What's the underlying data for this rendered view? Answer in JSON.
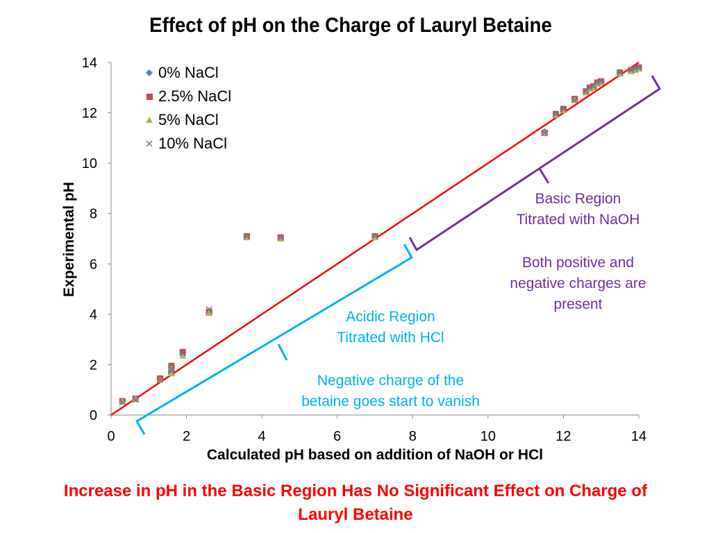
{
  "chart_data": {
    "type": "scatter",
    "title": "Effect of pH on the Charge of Lauryl Betaine",
    "xlabel": "Calculated pH based on addition of NaOH or HCl",
    "ylabel": "Experimental pH",
    "xlim": [
      0,
      14
    ],
    "ylim": [
      0,
      14
    ],
    "xticks": [
      0,
      2,
      4,
      6,
      8,
      10,
      12,
      14
    ],
    "yticks": [
      0,
      2,
      4,
      6,
      8,
      10,
      12,
      14
    ],
    "legend_position": "top-left",
    "series": [
      {
        "name": "0% NaCl",
        "marker": "diamond",
        "color": "#4f81bd",
        "x": [
          0.3,
          0.65,
          1.3,
          1.6,
          1.6,
          1.9,
          2.6,
          3.6,
          4.5,
          7.0,
          11.5,
          11.8,
          12.0,
          12.3,
          12.6,
          12.7,
          12.8,
          12.9,
          13.0,
          13.5,
          13.8,
          13.9,
          14.0
        ],
        "y": [
          0.55,
          0.65,
          1.45,
          1.7,
          1.9,
          2.5,
          4.1,
          7.1,
          7.05,
          7.1,
          11.25,
          11.95,
          12.15,
          12.55,
          12.85,
          13.0,
          13.05,
          13.2,
          13.25,
          13.6,
          13.7,
          13.75,
          13.8
        ]
      },
      {
        "name": "2.5% NaCl",
        "marker": "square",
        "color": "#c0504d",
        "x": [
          0.3,
          0.65,
          1.3,
          1.6,
          1.6,
          1.9,
          2.6,
          3.6,
          4.5,
          7.0,
          11.5,
          11.8,
          12.0,
          12.3,
          12.6,
          12.7,
          12.8,
          12.9,
          13.0,
          13.5,
          13.8,
          13.9,
          14.0
        ],
        "y": [
          0.55,
          0.65,
          1.45,
          1.7,
          1.95,
          2.5,
          4.1,
          7.1,
          7.05,
          7.1,
          11.2,
          11.95,
          12.15,
          12.55,
          12.85,
          13.0,
          13.05,
          13.2,
          13.25,
          13.6,
          13.7,
          13.75,
          13.8
        ]
      },
      {
        "name": "5% NaCl",
        "marker": "triangle",
        "color": "#9bbb59",
        "x": [
          0.3,
          0.65,
          1.3,
          1.6,
          1.6,
          1.9,
          2.6,
          3.6,
          4.5,
          7.0,
          11.5,
          11.8,
          12.0,
          12.3,
          12.6,
          12.7,
          12.8,
          12.9,
          13.0,
          13.5,
          13.8,
          13.9,
          14.0
        ],
        "y": [
          0.55,
          0.65,
          1.4,
          1.65,
          1.85,
          2.35,
          4.05,
          7.05,
          7.0,
          7.05,
          11.2,
          11.9,
          12.1,
          12.5,
          12.8,
          12.95,
          13.0,
          13.15,
          13.2,
          13.55,
          13.65,
          13.7,
          13.75
        ]
      },
      {
        "name": "10% NaCl",
        "marker": "x",
        "color": "#8064a2",
        "x": [
          0.3,
          0.65,
          1.3,
          1.6,
          1.6,
          1.9,
          2.6,
          3.6,
          4.5,
          7.0,
          11.5,
          11.8,
          12.0,
          12.3,
          12.6,
          12.7,
          12.8,
          12.9,
          13.0,
          13.5,
          13.8,
          13.9,
          14.0
        ],
        "y": [
          0.5,
          0.6,
          1.4,
          1.75,
          1.85,
          2.45,
          4.2,
          7.1,
          7.05,
          7.1,
          11.2,
          11.95,
          12.15,
          12.5,
          12.85,
          13.0,
          13.05,
          13.2,
          13.25,
          13.6,
          13.7,
          13.75,
          13.8
        ]
      }
    ],
    "reference_line": {
      "name": "y = x",
      "color": "#ff0000",
      "x": [
        0,
        14
      ],
      "y": [
        0,
        14
      ]
    },
    "annotations": [
      {
        "name": "basic-region",
        "color": "#7030a0",
        "lines": [
          "Basic Region",
          "Titrated with NaOH",
          "",
          "Both positive and",
          "negative charges are",
          "present"
        ]
      },
      {
        "name": "acidic-region",
        "color": "#00b0f0",
        "lines": [
          "Acidic Region",
          "Titrated with HCl",
          "",
          "Negative charge of the",
          "betaine goes start to vanish"
        ]
      }
    ]
  },
  "footer": {
    "line1": "Increase in pH in the Basic Region Has No Significant Effect on Charge of",
    "line2": "Lauryl Betaine"
  }
}
